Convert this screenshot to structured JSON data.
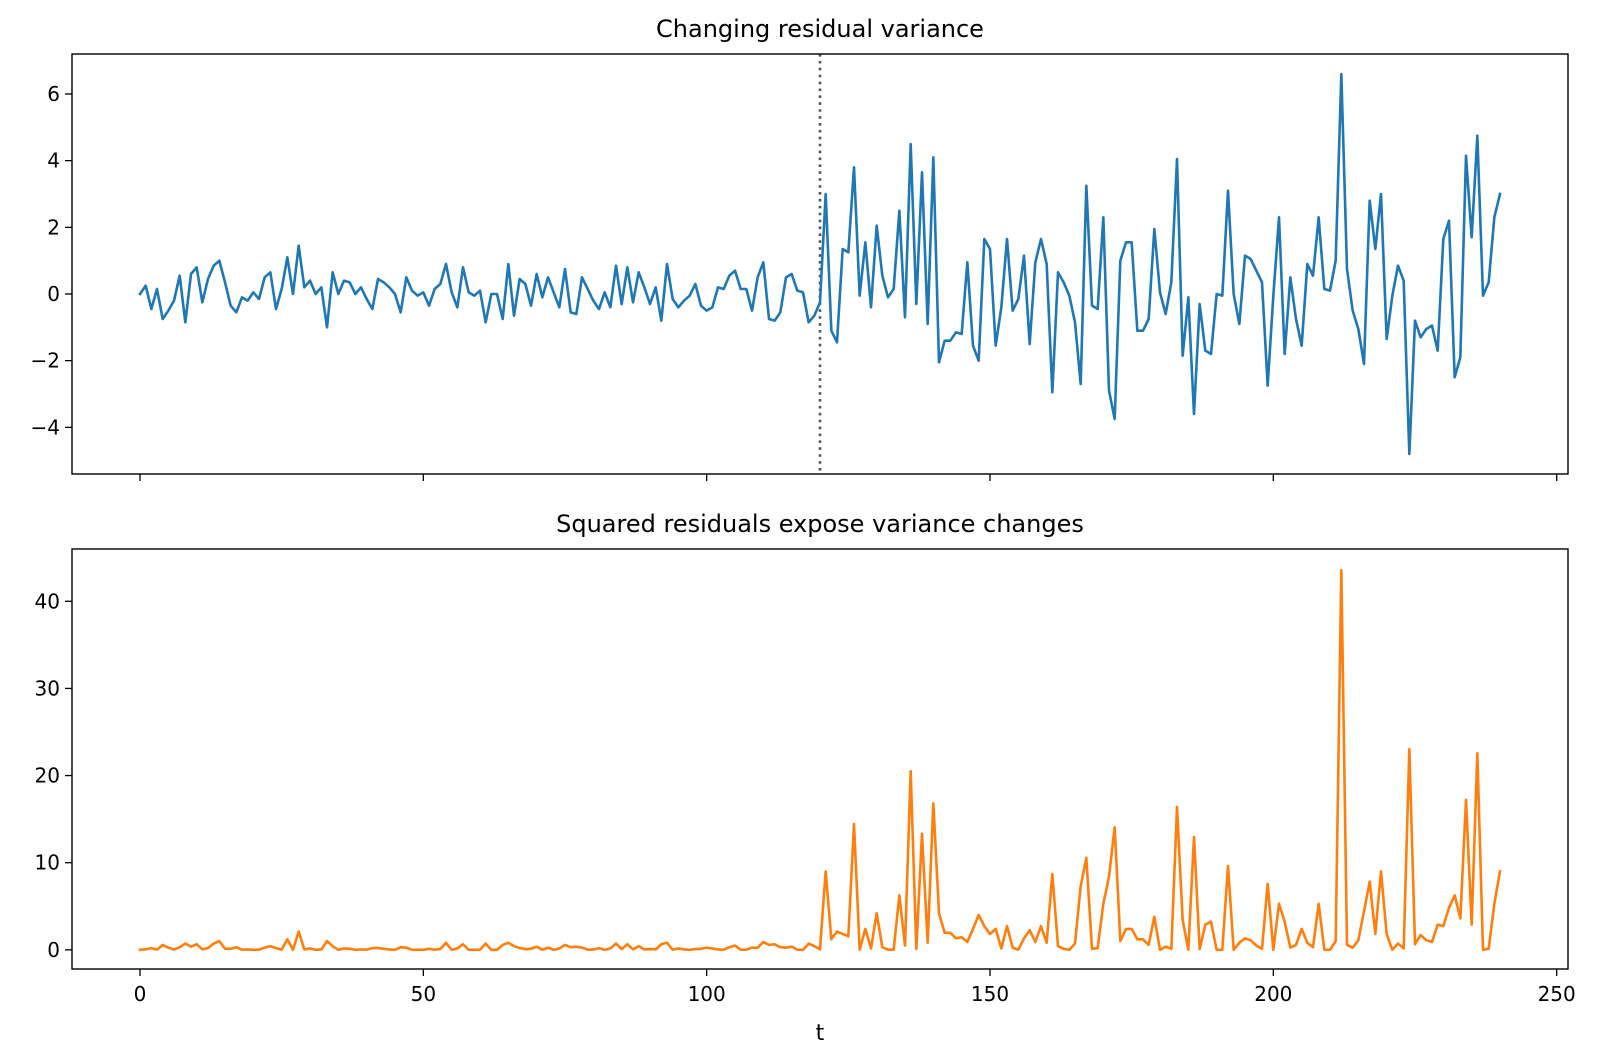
{
  "chart_data": [
    {
      "type": "line",
      "title": "Changing residual variance",
      "xlabel": "",
      "ylabel": "",
      "xlim": [
        -12,
        252
      ],
      "ylim": [
        -5.4,
        7.2
      ],
      "yticks": [
        -4,
        -2,
        0,
        2,
        4,
        6
      ],
      "ytick_labels": [
        "−4",
        "−2",
        "0",
        "2",
        "4",
        "6"
      ],
      "xticks": [
        0,
        50,
        100,
        150,
        200,
        250
      ],
      "xtick_labels": [],
      "vline": {
        "x": 120,
        "style": "dotted",
        "color": "#555555"
      },
      "series": [
        {
          "color": "#1f77b4",
          "x_start": 0,
          "values": [
            0.0,
            0.25,
            -0.45,
            0.15,
            -0.75,
            -0.5,
            -0.2,
            0.55,
            -0.85,
            0.6,
            0.8,
            -0.25,
            0.45,
            0.85,
            1.0,
            0.35,
            -0.35,
            -0.55,
            -0.1,
            -0.2,
            0.05,
            -0.15,
            0.5,
            0.65,
            -0.45,
            0.15,
            1.1,
            0.0,
            1.45,
            0.2,
            0.4,
            0.0,
            0.2,
            -1.0,
            0.65,
            0.0,
            0.4,
            0.35,
            0.0,
            0.2,
            -0.15,
            -0.45,
            0.45,
            0.35,
            0.2,
            0.0,
            -0.55,
            0.5,
            0.1,
            -0.05,
            0.05,
            -0.35,
            0.15,
            0.3,
            0.9,
            0.05,
            -0.4,
            0.8,
            0.05,
            -0.05,
            0.1,
            -0.85,
            0.0,
            0.0,
            -0.75,
            0.9,
            -0.65,
            0.45,
            0.3,
            -0.35,
            0.6,
            -0.1,
            0.5,
            0.05,
            -0.4,
            0.75,
            -0.55,
            -0.6,
            0.5,
            0.15,
            -0.2,
            -0.45,
            0.05,
            -0.4,
            0.85,
            -0.3,
            0.8,
            -0.25,
            0.65,
            0.2,
            -0.3,
            0.2,
            -0.8,
            0.9,
            -0.15,
            -0.4,
            -0.2,
            -0.05,
            0.3,
            -0.35,
            -0.5,
            -0.4,
            0.2,
            0.15,
            0.55,
            0.7,
            0.15,
            0.15,
            -0.5,
            0.5,
            0.95,
            -0.75,
            -0.8,
            -0.55,
            0.5,
            0.6,
            0.1,
            0.05,
            -0.85,
            -0.65,
            -0.25,
            3.0,
            -1.1,
            -1.45,
            1.35,
            1.25,
            3.8,
            -0.05,
            1.55,
            -0.4,
            2.05,
            0.55,
            -0.1,
            0.15,
            2.5,
            -0.7,
            4.5,
            -0.3,
            3.65,
            -0.9,
            4.1,
            -2.05,
            -1.4,
            -1.4,
            -1.15,
            -1.2,
            0.95,
            -1.55,
            -2.0,
            1.65,
            1.35,
            -1.55,
            -0.4,
            1.65,
            -0.5,
            -0.15,
            1.15,
            -1.5,
            0.95,
            1.65,
            0.9,
            -2.95,
            0.65,
            0.35,
            -0.05,
            -0.85,
            -2.7,
            3.25,
            -0.35,
            -0.45,
            2.3,
            -2.9,
            -3.75,
            1.0,
            1.55,
            1.55,
            -1.1,
            -1.1,
            -0.75,
            1.95,
            0.05,
            -0.6,
            0.35,
            4.05,
            -1.85,
            -0.1,
            -3.6,
            -0.3,
            -1.7,
            -1.8,
            0.0,
            -0.05,
            3.1,
            0.0,
            -0.9,
            1.15,
            1.05,
            0.7,
            0.35,
            -2.75,
            -0.05,
            2.3,
            -1.8,
            0.5,
            -0.75,
            -1.55,
            0.9,
            0.55,
            2.3,
            0.15,
            0.1,
            1.0,
            6.6,
            0.75,
            -0.5,
            -1.05,
            -2.1,
            2.8,
            1.35,
            3.0,
            -1.35,
            -0.05,
            0.85,
            0.4,
            -4.8,
            -0.8,
            -1.3,
            -1.05,
            -0.95,
            -1.7,
            1.65,
            2.2,
            -2.5,
            -1.9,
            4.15,
            1.7,
            4.75,
            -0.05,
            0.35,
            2.3,
            3.0
          ]
        }
      ]
    },
    {
      "type": "line",
      "title": "Squared residuals expose variance changes",
      "xlabel": "t",
      "ylabel": "",
      "xlim": [
        -12,
        252
      ],
      "ylim": [
        -2.2,
        46.0
      ],
      "yticks": [
        0,
        10,
        20,
        30,
        40
      ],
      "ytick_labels": [
        "0",
        "10",
        "20",
        "30",
        "40"
      ],
      "xticks": [
        0,
        50,
        100,
        150,
        200,
        250
      ],
      "xtick_labels": [
        "0",
        "50",
        "100",
        "150",
        "200",
        "250"
      ],
      "series": [
        {
          "color": "#ff7f0e",
          "x_start": 0,
          "values": [
            0.0,
            0.06,
            0.2,
            0.02,
            0.56,
            0.25,
            0.04,
            0.3,
            0.72,
            0.36,
            0.64,
            0.06,
            0.2,
            0.72,
            1.0,
            0.12,
            0.12,
            0.3,
            0.01,
            0.04,
            0.0,
            0.02,
            0.25,
            0.42,
            0.2,
            0.02,
            1.21,
            0.0,
            2.1,
            0.04,
            0.16,
            0.0,
            0.04,
            1.0,
            0.42,
            0.0,
            0.16,
            0.12,
            0.0,
            0.04,
            0.02,
            0.2,
            0.2,
            0.12,
            0.04,
            0.0,
            0.3,
            0.25,
            0.01,
            0.0,
            0.0,
            0.12,
            0.02,
            0.09,
            0.81,
            0.0,
            0.16,
            0.64,
            0.0,
            0.0,
            0.01,
            0.72,
            0.0,
            0.0,
            0.56,
            0.81,
            0.42,
            0.2,
            0.09,
            0.12,
            0.36,
            0.01,
            0.25,
            0.0,
            0.16,
            0.56,
            0.3,
            0.36,
            0.25,
            0.02,
            0.04,
            0.2,
            0.0,
            0.16,
            0.72,
            0.09,
            0.64,
            0.06,
            0.42,
            0.04,
            0.09,
            0.04,
            0.64,
            0.81,
            0.02,
            0.16,
            0.04,
            0.0,
            0.09,
            0.12,
            0.25,
            0.16,
            0.04,
            0.02,
            0.3,
            0.49,
            0.02,
            0.02,
            0.25,
            0.25,
            0.9,
            0.56,
            0.64,
            0.3,
            0.25,
            0.36,
            0.01,
            0.0,
            0.72,
            0.42,
            0.06,
            9.0,
            1.21,
            2.1,
            1.82,
            1.56,
            14.44,
            0.0,
            2.4,
            0.16,
            4.2,
            0.3,
            0.01,
            0.02,
            6.25,
            0.49,
            20.5,
            0.09,
            13.32,
            0.81,
            16.81,
            4.2,
            1.96,
            1.96,
            1.32,
            1.44,
            0.9,
            2.4,
            4.0,
            2.72,
            1.82,
            2.4,
            0.16,
            2.72,
            0.25,
            0.02,
            1.32,
            2.25,
            0.9,
            2.72,
            0.81,
            8.7,
            0.42,
            0.12,
            0.0,
            0.72,
            7.3,
            10.56,
            0.12,
            0.2,
            5.29,
            8.41,
            14.06,
            1.0,
            2.4,
            2.4,
            1.21,
            1.21,
            0.56,
            3.8,
            0.0,
            0.36,
            0.12,
            16.4,
            3.42,
            0.01,
            12.96,
            0.09,
            2.89,
            3.24,
            0.0,
            0.0,
            9.61,
            0.0,
            0.81,
            1.32,
            1.1,
            0.49,
            0.12,
            7.56,
            0.0,
            5.29,
            3.24,
            0.25,
            0.56,
            2.4,
            0.81,
            0.3,
            5.29,
            0.02,
            0.01,
            1.0,
            43.56,
            0.56,
            0.25,
            1.1,
            4.41,
            7.84,
            1.82,
            9.0,
            1.82,
            0.0,
            0.72,
            0.16,
            23.04,
            0.64,
            1.69,
            1.1,
            0.9,
            2.89,
            2.72,
            4.84,
            6.25,
            3.61,
            17.22,
            2.89,
            22.56,
            0.0,
            0.12,
            5.29,
            9.0
          ]
        }
      ]
    }
  ]
}
